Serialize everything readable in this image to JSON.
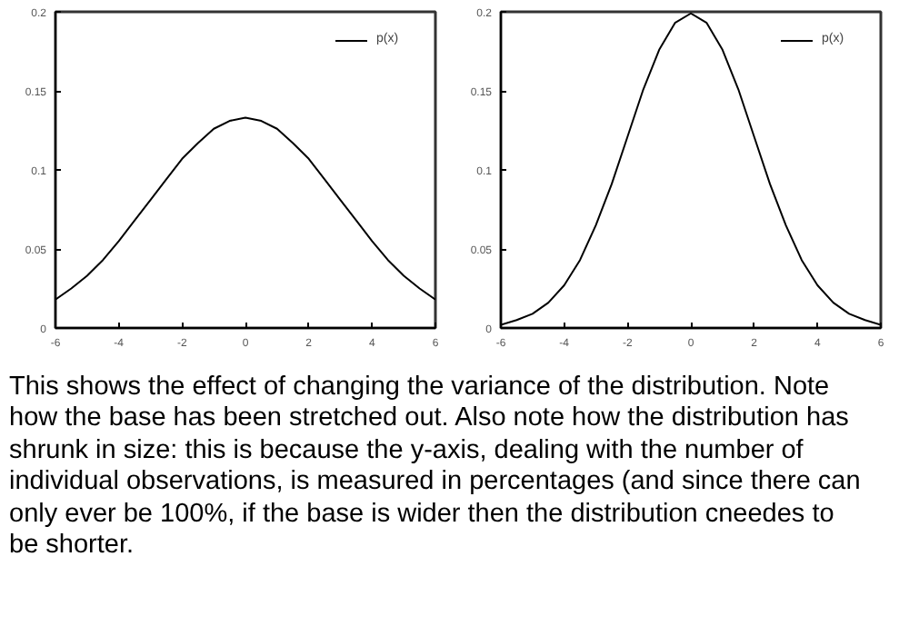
{
  "chart_data": [
    {
      "type": "line",
      "x": [
        -6,
        -5.5,
        -5,
        -4.5,
        -4,
        -3.5,
        -3,
        -2.5,
        -2,
        -1.5,
        -1,
        -0.5,
        0,
        0.5,
        1,
        1.5,
        2,
        2.5,
        3,
        3.5,
        4,
        4.5,
        5,
        5.5,
        6
      ],
      "series": [
        {
          "name": "p(x)",
          "color": "#000000",
          "values": [
            0.018,
            0.025,
            0.033,
            0.043,
            0.055,
            0.068,
            0.081,
            0.094,
            0.107,
            0.117,
            0.126,
            0.131,
            0.133,
            0.131,
            0.126,
            0.117,
            0.107,
            0.094,
            0.081,
            0.068,
            0.055,
            0.043,
            0.033,
            0.025,
            0.018
          ]
        }
      ],
      "xlim": [
        -6,
        6
      ],
      "ylim": [
        0,
        0.2
      ],
      "xticks": [
        -6,
        -4,
        -2,
        0,
        2,
        4,
        6
      ],
      "yticks": [
        0,
        0.05,
        0.1,
        0.15,
        0.2
      ],
      "grid": false,
      "legend": "top right",
      "annotations": [
        "This shows the effect of changing the variance of the distribution. Note how the base has been stretched out. Also note how the distribution has shrunk in size: this is because the y-axis, dealing with the number of individual observations, is measured in percentages (and since there can only ever be 100%, if the base is wider then the distribution cneedes to be shorter."
      ]
    },
    {
      "type": "line",
      "x": [
        -6,
        -5.5,
        -5,
        -4.5,
        -4,
        -3.5,
        -3,
        -2.5,
        -2,
        -1.5,
        -1,
        -0.5,
        0,
        0.5,
        1,
        1.5,
        2,
        2.5,
        3,
        3.5,
        4,
        4.5,
        5,
        5.5,
        6
      ],
      "series": [
        {
          "name": "p(x)",
          "color": "#000000",
          "values": [
            0.002,
            0.005,
            0.009,
            0.016,
            0.027,
            0.043,
            0.065,
            0.091,
            0.121,
            0.151,
            0.176,
            0.193,
            0.199,
            0.193,
            0.176,
            0.151,
            0.121,
            0.091,
            0.065,
            0.043,
            0.027,
            0.016,
            0.009,
            0.005,
            0.002
          ]
        }
      ],
      "xlim": [
        -6,
        6
      ],
      "ylim": [
        0,
        0.2
      ],
      "xticks": [
        -6,
        -4,
        -2,
        0,
        2,
        4,
        6
      ],
      "yticks": [
        0,
        0.05,
        0.1,
        0.15,
        0.2
      ],
      "grid": false,
      "legend": "top right"
    }
  ]
}
